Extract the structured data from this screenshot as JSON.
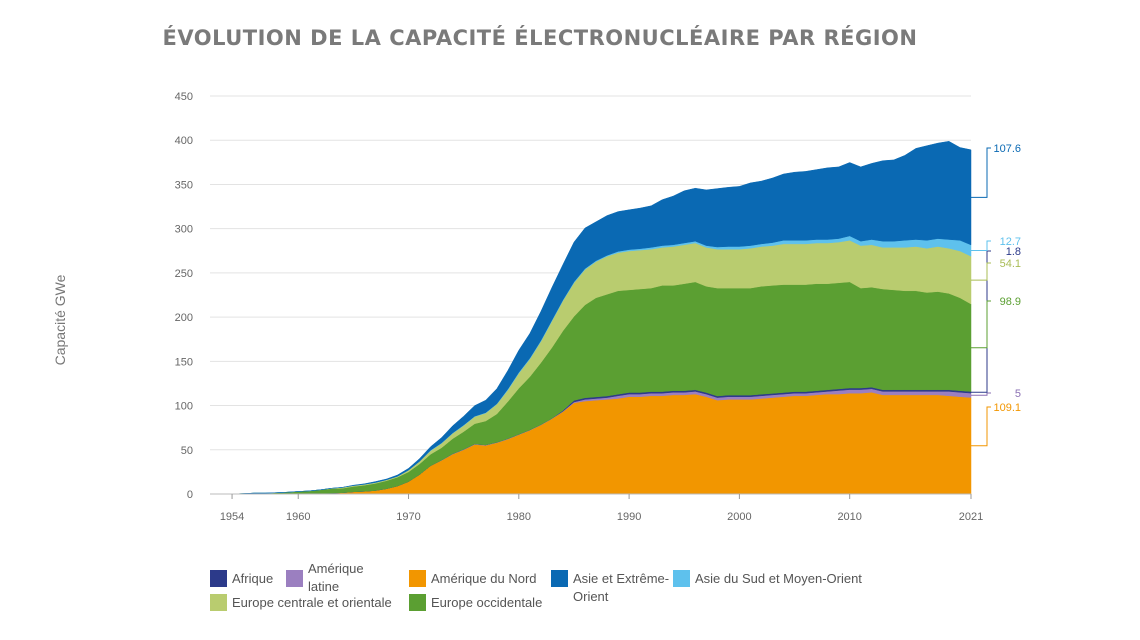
{
  "chart_data": {
    "type": "area",
    "stacked": true,
    "title": "ÉVOLUTION DE LA CAPACITÉ ÉLECTRONUCLÉAIRE PAR RÉGION",
    "ylabel": "Capacité GWe",
    "xlabel": "",
    "ylim": [
      0,
      450
    ],
    "xlim": [
      1952,
      2021
    ],
    "yticks": [
      0,
      50,
      100,
      150,
      200,
      250,
      300,
      350,
      400,
      450
    ],
    "xticks": [
      1954,
      1960,
      1970,
      1980,
      1990,
      2000,
      2010,
      2021
    ],
    "grid": "horizontal",
    "legend_position": "bottom",
    "x": [
      1954,
      1955,
      1956,
      1957,
      1958,
      1959,
      1960,
      1961,
      1962,
      1963,
      1964,
      1965,
      1966,
      1967,
      1968,
      1969,
      1970,
      1971,
      1972,
      1973,
      1974,
      1975,
      1976,
      1977,
      1978,
      1979,
      1980,
      1981,
      1982,
      1983,
      1984,
      1985,
      1986,
      1987,
      1988,
      1989,
      1990,
      1991,
      1992,
      1993,
      1994,
      1995,
      1996,
      1997,
      1998,
      1999,
      2000,
      2001,
      2002,
      2003,
      2004,
      2005,
      2006,
      2007,
      2008,
      2009,
      2010,
      2011,
      2012,
      2013,
      2014,
      2015,
      2016,
      2017,
      2018,
      2019,
      2020,
      2021
    ],
    "series": [
      {
        "name": "Amérique du Nord",
        "color": "#f29600",
        "end_label": "109.1",
        "values": [
          0,
          0,
          0,
          0,
          0,
          0,
          0.3,
          0.5,
          0.8,
          1,
          1.5,
          2.5,
          3,
          4,
          6,
          9,
          14,
          22,
          32,
          38,
          45,
          50,
          56,
          55,
          58,
          62,
          67,
          72,
          78,
          85,
          93,
          103,
          105,
          106,
          107,
          108,
          110,
          110,
          111,
          111,
          112,
          112,
          113,
          110,
          106,
          107,
          107,
          107,
          108,
          109,
          110,
          111,
          111,
          112,
          113,
          113,
          114,
          114,
          115,
          112,
          112,
          112,
          112,
          112,
          112,
          111,
          110,
          109.1
        ]
      },
      {
        "name": "Amérique latine",
        "color": "#9b7fc0",
        "end_label": "5",
        "values": [
          0,
          0,
          0,
          0,
          0,
          0,
          0,
          0,
          0,
          0,
          0,
          0,
          0,
          0,
          0,
          0,
          0,
          0,
          0,
          0.3,
          0.5,
          0.5,
          0.5,
          0.5,
          0.5,
          0.5,
          0.5,
          0.5,
          0.5,
          0.5,
          0.5,
          1,
          2,
          2,
          2,
          3,
          3,
          3,
          3,
          3,
          3,
          3,
          3,
          3,
          3,
          3,
          3,
          3,
          3,
          3,
          3,
          3,
          3,
          3,
          3,
          4,
          4,
          4,
          4,
          4,
          4,
          4,
          4,
          4,
          4,
          5,
          5,
          5
        ]
      },
      {
        "name": "Afrique",
        "color": "#2c3a8a",
        "end_label": "1.8",
        "values": [
          0,
          0,
          0,
          0,
          0,
          0,
          0,
          0,
          0,
          0,
          0,
          0,
          0,
          0,
          0,
          0,
          0,
          0,
          0,
          0,
          0,
          0,
          0,
          0,
          0,
          0,
          0,
          0,
          0,
          0,
          0.9,
          1.8,
          1.8,
          1.8,
          1.8,
          1.8,
          1.8,
          1.8,
          1.8,
          1.8,
          1.8,
          1.8,
          1.8,
          1.8,
          1.8,
          1.8,
          1.8,
          1.8,
          1.8,
          1.8,
          1.8,
          1.8,
          1.8,
          1.8,
          1.8,
          1.8,
          1.8,
          1.8,
          1.8,
          1.8,
          1.8,
          1.8,
          1.8,
          1.8,
          1.8,
          1.8,
          1.8,
          1.8
        ]
      },
      {
        "name": "Europe occidentale",
        "color": "#5b9f32",
        "end_label": "98.9",
        "values": [
          0,
          0.5,
          1,
          1,
          1.5,
          2,
          2.5,
          3,
          4,
          5,
          5,
          6,
          7,
          8,
          9,
          10,
          11,
          12,
          13,
          14,
          17,
          20,
          23,
          27,
          32,
          42,
          52,
          60,
          70,
          80,
          90,
          95,
          105,
          112,
          115,
          117,
          116,
          117,
          117,
          120,
          119,
          121,
          122,
          120,
          122,
          121,
          121,
          121,
          122,
          122,
          122,
          121,
          121,
          121,
          120,
          120,
          120,
          113,
          113,
          114,
          113,
          112,
          112,
          110,
          111,
          109,
          105,
          98.9
        ]
      },
      {
        "name": "Europe centrale et orientale",
        "color": "#b9cc6f",
        "end_label": "54.1",
        "values": [
          0,
          0,
          0,
          0,
          0,
          0,
          0,
          0,
          0,
          0.5,
          1,
          1,
          1,
          1,
          1,
          1,
          2,
          3,
          4,
          5,
          6,
          7,
          8,
          9,
          11,
          13,
          17,
          20,
          24,
          30,
          34,
          38,
          40,
          41,
          43,
          43,
          44,
          44,
          44,
          43,
          44,
          44,
          44,
          44,
          44,
          44,
          44,
          45,
          45,
          45,
          46,
          46,
          46,
          46,
          46,
          46,
          47,
          48,
          48,
          47,
          48,
          49,
          50,
          50,
          51,
          51,
          53,
          54.1
        ]
      },
      {
        "name": "Asie du Sud et Moyen-Orient",
        "color": "#5ec1ed",
        "end_label": "12.7",
        "values": [
          0,
          0,
          0,
          0,
          0,
          0,
          0,
          0,
          0,
          0,
          0,
          0,
          0,
          0,
          0,
          0,
          0,
          0,
          0.5,
          0.5,
          0.5,
          0.5,
          0.5,
          0.5,
          0.5,
          1,
          1,
          1,
          1,
          1,
          1,
          1,
          1,
          1,
          1,
          1.5,
          1.5,
          1.5,
          2,
          2,
          2,
          2,
          2,
          2,
          2.5,
          3,
          3,
          3,
          3,
          3.5,
          4,
          4,
          4,
          4,
          4,
          4,
          5,
          5,
          6,
          7,
          7,
          8,
          8,
          9,
          9,
          10,
          12,
          12.7
        ]
      },
      {
        "name": "Asie et Extrême-Orient",
        "color": "#0a69b3",
        "end_label": "107.6",
        "values": [
          0,
          0,
          0,
          0,
          0,
          0,
          0,
          0,
          0,
          0,
          0,
          0.5,
          0.5,
          1,
          1,
          1.5,
          2,
          3,
          4,
          6,
          8,
          10,
          12,
          14,
          17,
          21,
          25,
          28,
          33,
          37,
          40,
          45,
          46,
          44,
          45,
          45,
          45,
          46,
          47,
          52,
          55,
          59,
          60,
          63,
          66,
          67,
          68,
          71,
          71,
          73,
          75,
          77,
          78,
          79,
          81,
          81,
          83,
          84,
          86,
          91,
          92,
          96,
          103,
          107,
          108,
          111,
          105,
          107.6
        ]
      }
    ]
  },
  "legend": {
    "items": [
      {
        "label": "Afrique",
        "color": "#2c3a8a"
      },
      {
        "label": "Amérique latine",
        "color": "#9b7fc0"
      },
      {
        "label": "Amérique du Nord",
        "color": "#f29600"
      },
      {
        "label": "Asie et Extrême-Orient",
        "color": "#0a69b3"
      },
      {
        "label": "Asie du Sud et Moyen-Orient",
        "color": "#5ec1ed"
      },
      {
        "label": "Europe centrale et orientale",
        "color": "#b9cc6f"
      },
      {
        "label": "Europe occidentale",
        "color": "#5b9f32"
      }
    ]
  }
}
